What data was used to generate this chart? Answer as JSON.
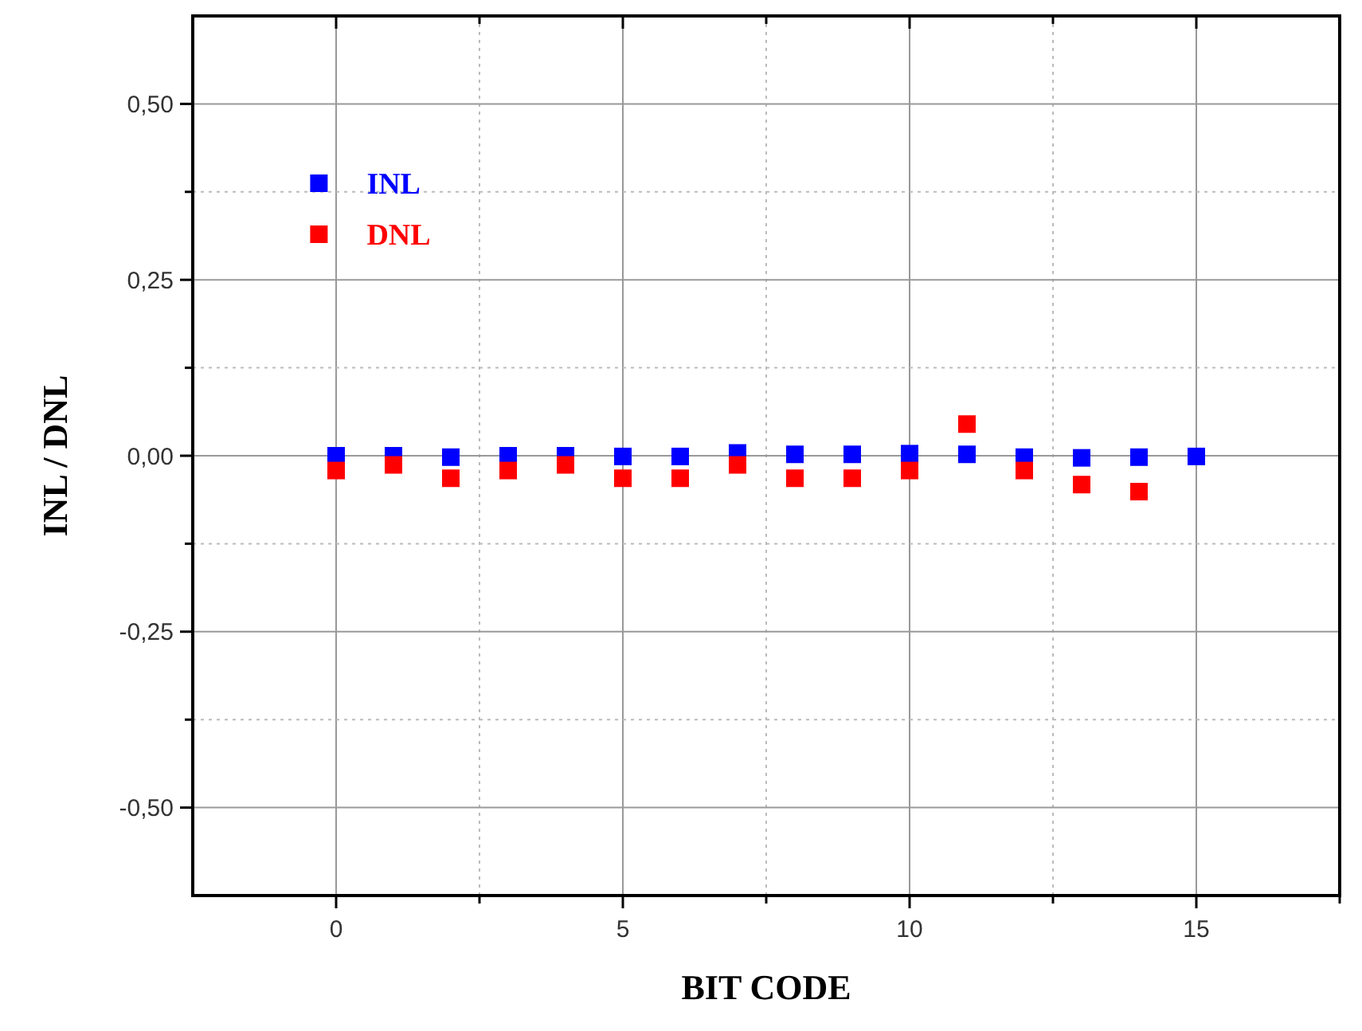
{
  "chart_data": {
    "type": "scatter",
    "xlabel": "BIT CODE",
    "ylabel": "INL / DNL",
    "x": [
      0,
      1,
      2,
      3,
      4,
      5,
      6,
      7,
      8,
      9,
      10,
      11,
      12,
      13,
      14,
      15
    ],
    "series": [
      {
        "name": "INL",
        "color": "#0000ff",
        "values": [
          0,
          0,
          -0.002,
          0,
          0,
          -0.001,
          -0.001,
          0.004,
          0.002,
          0.002,
          0.003,
          0.002,
          -0.002,
          -0.003,
          -0.002,
          -0.001
        ]
      },
      {
        "name": "DNL",
        "color": "#ff0000",
        "values": [
          -0.021,
          -0.013,
          -0.032,
          -0.021,
          -0.013,
          -0.032,
          -0.032,
          -0.013,
          -0.032,
          -0.032,
          -0.021,
          0.045,
          -0.021,
          -0.041,
          -0.051,
          null
        ]
      }
    ],
    "xlim": [
      -2.5,
      17.5
    ],
    "xticks": [
      0,
      {
        "value": 2.5,
        "label": null
      },
      5,
      {
        "value": 7.5,
        "label": null
      },
      10,
      {
        "value": 12.5,
        "label": null
      },
      15,
      {
        "value": 17.5,
        "label": null
      }
    ],
    "ylim": [
      -0.625,
      0.625
    ],
    "yticks": [
      {
        "value": -0.5,
        "label": "-0,50"
      },
      {
        "value": -0.375,
        "label": null
      },
      {
        "value": -0.25,
        "label": "-0,25"
      },
      {
        "value": -0.125,
        "label": null
      },
      {
        "value": 0,
        "label": "0,00"
      },
      {
        "value": 0.125,
        "label": null
      },
      {
        "value": 0.25,
        "label": "0,25"
      },
      {
        "value": 0.375,
        "label": null
      },
      {
        "value": 0.5,
        "label": "0,50"
      }
    ],
    "grid": true,
    "legend": "top left",
    "marker": "square"
  }
}
